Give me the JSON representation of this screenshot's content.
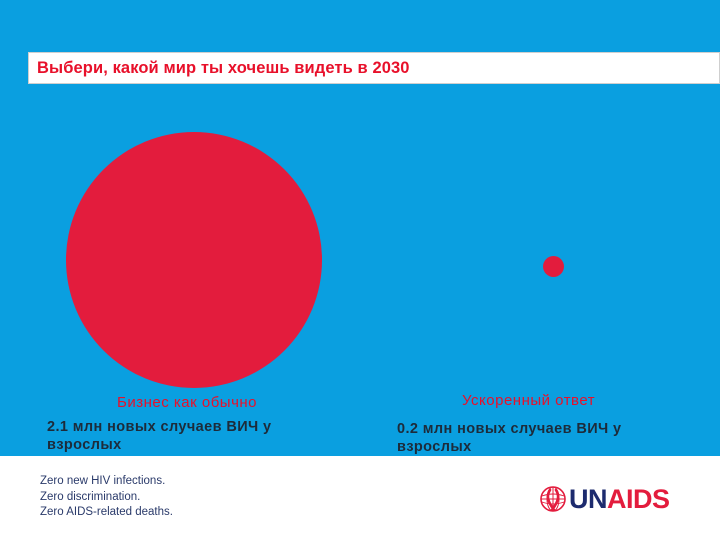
{
  "title": "Выбери, какой мир ты хочешь видеть в 2030",
  "scenarios": [
    {
      "heading": "Бизнес как обычно",
      "detail": "2.1 млн новых случаев ВИЧ у взрослых",
      "new_infections_millions": 2.1
    },
    {
      "heading": "Ускоренный ответ",
      "detail": "0.2  млн новых случаев ВИЧ у взрослых",
      "new_infections_millions": 0.2
    }
  ],
  "tagline": [
    "Zero new HIV infections.",
    "Zero discrimination.",
    "Zero AIDS-related deaths."
  ],
  "logo": {
    "part1": "UN",
    "part2": "AIDS"
  },
  "colors": {
    "background_blue": "#0a9fe0",
    "circle_red": "#e31c3d",
    "title_red": "#e8102a",
    "logo_navy": "#1d2b6e"
  }
}
